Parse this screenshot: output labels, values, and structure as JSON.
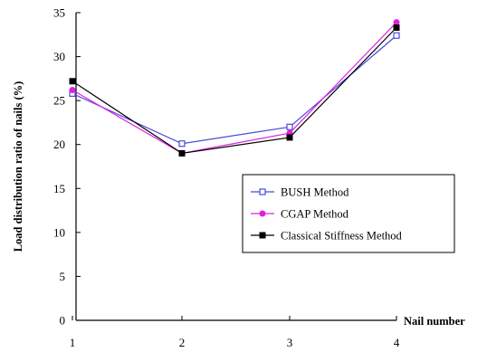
{
  "chart_data": {
    "type": "line",
    "categories": [
      "1",
      "2",
      "3",
      "4"
    ],
    "xlabel": "Nail number",
    "ylabel": "Load distribution ratio of nails (%)",
    "ylim": [
      0,
      35
    ],
    "yticks": [
      0,
      5,
      10,
      15,
      20,
      25,
      30,
      35
    ],
    "grid": false,
    "legend_position": "center-right",
    "series": [
      {
        "name": "BUSH  Method",
        "color": "#4a4ad8",
        "marker": "open-square",
        "values": [
          25.8,
          20.1,
          22.0,
          32.4
        ]
      },
      {
        "name": "CGAP  Method",
        "color": "#e020e0",
        "marker": "filled-circle",
        "values": [
          26.2,
          19.0,
          21.3,
          33.9
        ]
      },
      {
        "name": "Classical Stiffness Method",
        "color": "#000000",
        "marker": "filled-square",
        "values": [
          27.2,
          19.0,
          20.8,
          33.3
        ]
      }
    ]
  }
}
